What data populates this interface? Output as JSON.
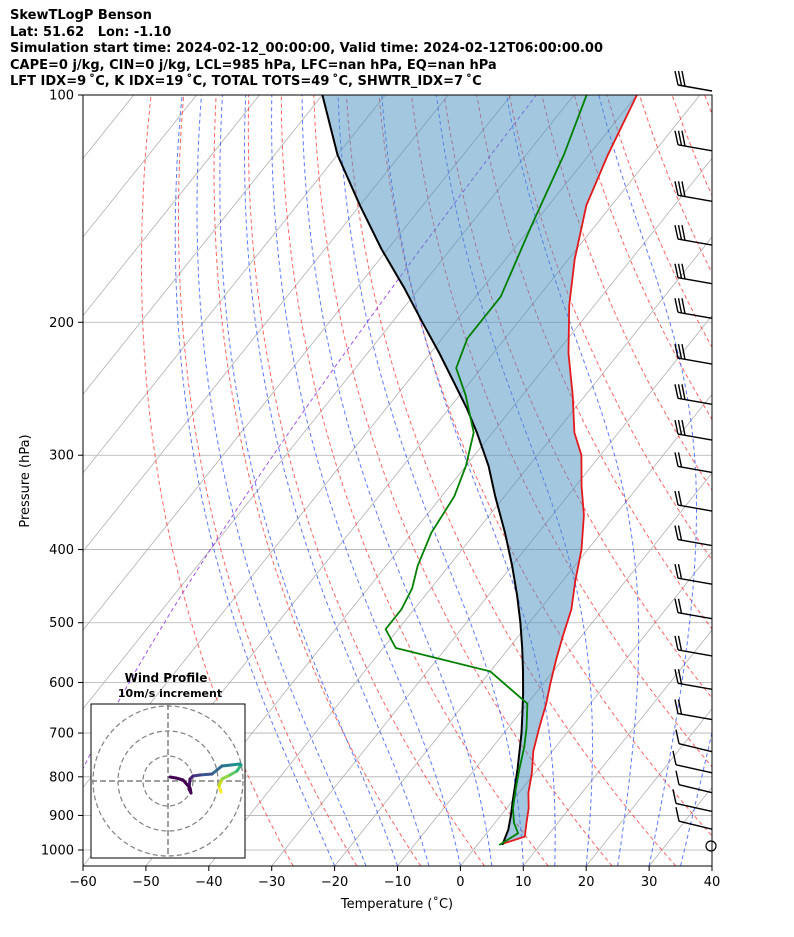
{
  "header": {
    "line1": "SkewTLogP Benson",
    "line2": "Lat: 51.62   Lon: -1.10",
    "line3": "Simulation start time: 2024-02-12_00:00:00, Valid time: 2024-02-12T06:00:00.00",
    "line4": "CAPE=0 j/kg, CIN=0 j/kg, LCL=985 hPa, LFC=nan hPa, EQ=nan hPa",
    "line5": "LFT IDX=9 ˚C, K IDX=19 ˚C, TOTAL TOTS=49 ˚C, SHWTR_IDX=7 ˚C"
  },
  "chart_data": {
    "type": "line",
    "title": "SkewTLogP Benson",
    "xlabel": "Temperature (˚C)",
    "ylabel": "Pressure (hPa)",
    "xlim": [
      -60,
      40
    ],
    "ylim": [
      1050,
      100
    ],
    "y_scale": "log",
    "grid": true,
    "x_ticks": [
      -60,
      -50,
      -40,
      -30,
      -20,
      -10,
      0,
      10,
      20,
      30,
      40
    ],
    "y_ticks": [
      1000,
      900,
      800,
      700,
      600,
      500,
      400,
      300,
      200,
      100
    ],
    "series": [
      {
        "role": "temperature",
        "color": "#e31a1c",
        "points": [
          [
            4.0,
            980
          ],
          [
            6.5,
            960
          ],
          [
            5.0,
            920
          ],
          [
            3.5,
            880
          ],
          [
            1.5,
            840
          ],
          [
            -0.5,
            790
          ],
          [
            -3,
            740
          ],
          [
            -5,
            690
          ],
          [
            -7,
            640
          ],
          [
            -9,
            600
          ],
          [
            -11,
            560
          ],
          [
            -13,
            520
          ],
          [
            -15,
            480
          ],
          [
            -18,
            440
          ],
          [
            -21,
            400
          ],
          [
            -25,
            360
          ],
          [
            -29,
            330
          ],
          [
            -33,
            300
          ],
          [
            -37,
            280
          ],
          [
            -42,
            250
          ],
          [
            -48,
            220
          ],
          [
            -54,
            190
          ],
          [
            -59,
            165
          ],
          [
            -64,
            140
          ],
          [
            -67,
            120
          ],
          [
            -70,
            100
          ]
        ]
      },
      {
        "role": "dewpoint",
        "color": "#008000",
        "points": [
          [
            3.5,
            985
          ],
          [
            5.0,
            950
          ],
          [
            3.0,
            920
          ],
          [
            1.0,
            880
          ],
          [
            -1.0,
            830
          ],
          [
            -3,
            780
          ],
          [
            -5,
            730
          ],
          [
            -7,
            690
          ],
          [
            -10,
            640
          ],
          [
            -20,
            580
          ],
          [
            -38,
            540
          ],
          [
            -42,
            510
          ],
          [
            -42,
            480
          ],
          [
            -43,
            450
          ],
          [
            -45,
            420
          ],
          [
            -47,
            380
          ],
          [
            -48,
            340
          ],
          [
            -50,
            310
          ],
          [
            -53,
            280
          ],
          [
            -59,
            250
          ],
          [
            -64,
            230
          ],
          [
            -66,
            210
          ],
          [
            -66,
            185
          ],
          [
            -70,
            150
          ],
          [
            -74,
            120
          ],
          [
            -78,
            100
          ]
        ]
      },
      {
        "role": "parcel",
        "color": "#000000",
        "points": [
          [
            4.0,
            985
          ],
          [
            3.0,
            940
          ],
          [
            1.6,
            900
          ],
          [
            0.0,
            860
          ],
          [
            -1.6,
            820
          ],
          [
            -3.3,
            780
          ],
          [
            -5.2,
            740
          ],
          [
            -7.2,
            700
          ],
          [
            -9.5,
            660
          ],
          [
            -12.0,
            620
          ],
          [
            -14.8,
            580
          ],
          [
            -17.9,
            540
          ],
          [
            -21.4,
            500
          ],
          [
            -25.4,
            460
          ],
          [
            -30.0,
            420
          ],
          [
            -35.3,
            380
          ],
          [
            -41.5,
            340
          ],
          [
            -46.4,
            310
          ],
          [
            -52.5,
            280
          ],
          [
            -57.2,
            260
          ],
          [
            -62.6,
            240
          ],
          [
            -68.5,
            220
          ],
          [
            -75.2,
            200
          ],
          [
            -82.5,
            180
          ],
          [
            -91.0,
            160
          ],
          [
            -100.0,
            140
          ],
          [
            -110.0,
            120
          ],
          [
            -120.0,
            100
          ]
        ]
      }
    ],
    "wind_barbs_pressure": [
      100,
      120,
      140,
      160,
      180,
      200,
      230,
      260,
      290,
      320,
      360,
      400,
      450,
      500,
      560,
      620,
      680,
      750,
      800,
      850,
      900,
      950,
      1000
    ]
  },
  "inset": {
    "title": "Wind Profile",
    "subtitle": "10m/s increment"
  }
}
